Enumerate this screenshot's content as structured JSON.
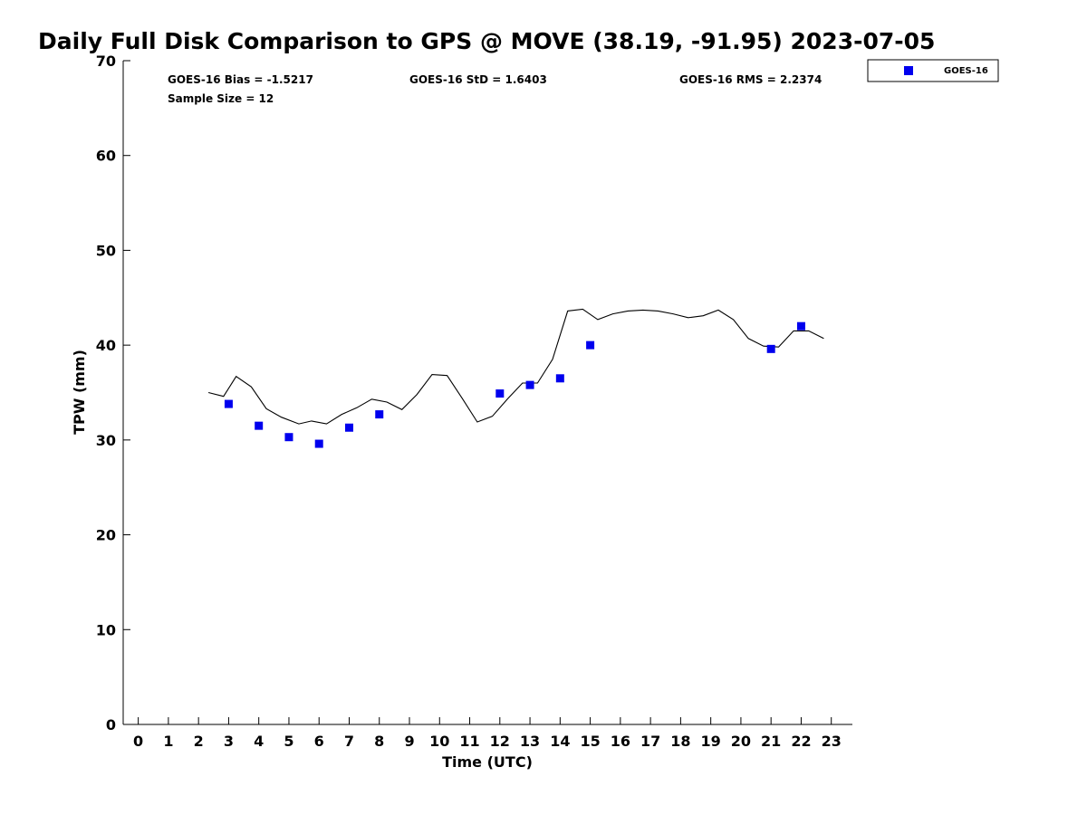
{
  "chart_data": {
    "type": "scatter",
    "title": "Daily Full Disk Comparison to GPS @ MOVE (38.19, -91.95) 2023-07-05",
    "xlabel": "Time (UTC)",
    "ylabel": "TPW (mm)",
    "xlim": [
      -0.5,
      23.7
    ],
    "ylim": [
      0,
      70
    ],
    "xticks": [
      0,
      1,
      2,
      3,
      4,
      5,
      6,
      7,
      8,
      9,
      10,
      11,
      12,
      13,
      14,
      15,
      16,
      17,
      18,
      19,
      20,
      21,
      22,
      23
    ],
    "yticks": [
      0,
      10,
      20,
      30,
      40,
      50,
      60,
      70
    ],
    "xtick_labels": [
      "0",
      "1",
      "2",
      "3",
      "4",
      "5",
      "6",
      "7",
      "8",
      "9",
      "10",
      "11",
      "12",
      "13",
      "14",
      "15",
      "16",
      "17",
      "18",
      "19",
      "20",
      "21",
      "22",
      "23"
    ],
    "ytick_labels": [
      "0",
      "10",
      "20",
      "30",
      "40",
      "50",
      "60",
      "70"
    ],
    "grid": false,
    "legend_position": "outside-top-right",
    "stats": {
      "bias": "GOES-16 Bias = -1.5217",
      "std": "GOES-16 StD = 1.6403",
      "rms": "GOES-16 RMS = 2.2374",
      "sample": "Sample Size = 12"
    },
    "series": [
      {
        "name": "GOES-16",
        "kind": "markers",
        "color": "#0000ee",
        "marker": "square",
        "x": [
          3,
          4,
          5,
          6,
          7,
          8,
          12,
          13,
          14,
          15,
          21,
          22
        ],
        "y": [
          33.8,
          31.5,
          30.3,
          29.6,
          31.3,
          32.7,
          34.9,
          35.8,
          36.5,
          40.0,
          39.6,
          42.0
        ]
      },
      {
        "kind": "line",
        "color": "#000000",
        "x": [
          2.33,
          2.83,
          3.25,
          3.75,
          4.25,
          4.75,
          5.33,
          5.75,
          6.25,
          6.75,
          7.25,
          7.75,
          8.25,
          8.75,
          9.25,
          9.75,
          10.25,
          10.75,
          11.25,
          11.75,
          12.25,
          12.75,
          13.25,
          13.75,
          14.25,
          14.75,
          15.25,
          15.75,
          16.25,
          16.75,
          17.25,
          17.75,
          18.25,
          18.75,
          19.25,
          19.75,
          20.25,
          20.75,
          21.25,
          21.75,
          22.25,
          22.75
        ],
        "y": [
          35.0,
          34.6,
          36.7,
          35.6,
          33.3,
          32.4,
          31.7,
          32.0,
          31.7,
          32.7,
          33.4,
          34.3,
          34.0,
          33.2,
          34.8,
          36.9,
          36.8,
          34.4,
          31.9,
          32.5,
          34.3,
          36.0,
          36.0,
          38.5,
          43.6,
          43.8,
          42.7,
          43.3,
          43.6,
          43.7,
          43.6,
          43.3,
          42.9,
          43.1,
          43.7,
          42.7,
          40.7,
          39.9,
          39.8,
          41.5,
          41.5,
          40.7
        ]
      }
    ]
  }
}
